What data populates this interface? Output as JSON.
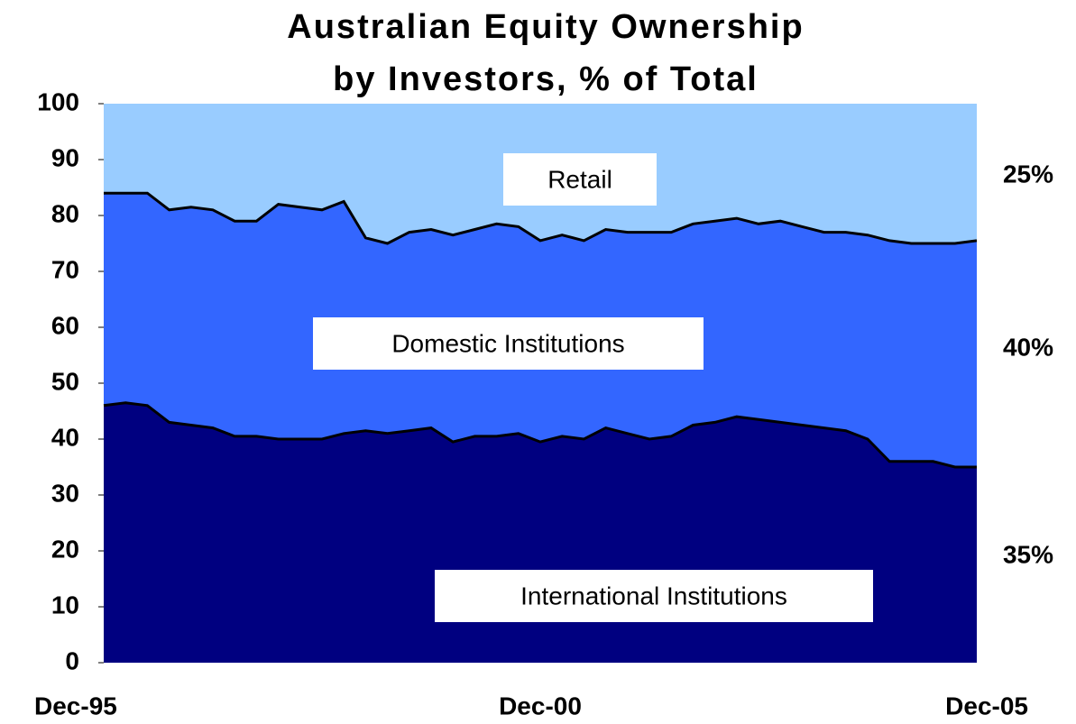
{
  "chart_data": {
    "type": "stacked_area",
    "title": [
      "Australian Equity Ownership",
      "by Investors, % of Total"
    ],
    "categories": [
      "Dec-95",
      null,
      null,
      null,
      null,
      null,
      null,
      null,
      null,
      null,
      null,
      null,
      null,
      null,
      null,
      null,
      null,
      null,
      null,
      null,
      "Dec-00",
      null,
      null,
      null,
      null,
      null,
      null,
      null,
      null,
      null,
      null,
      null,
      null,
      null,
      null,
      null,
      null,
      null,
      null,
      null,
      "Dec-05"
    ],
    "series": [
      {
        "name": "International Institutions",
        "color": "#000080",
        "values": [
          46,
          46.5,
          46,
          43,
          42.5,
          42,
          40.5,
          40.5,
          40,
          40,
          40,
          41,
          41.5,
          41,
          41.5,
          42,
          39.5,
          40.5,
          40.5,
          41,
          39.5,
          40.5,
          40,
          42,
          41,
          40,
          40.5,
          42.5,
          43,
          44,
          43.5,
          43,
          42.5,
          42,
          41.5,
          40,
          36,
          36,
          36,
          35,
          35
        ]
      },
      {
        "name": "Domestic Institutions",
        "color": "#3366ff",
        "values": [
          38,
          37.5,
          38,
          38,
          39,
          39,
          38.5,
          38.5,
          42,
          41.5,
          41,
          41.5,
          34.5,
          34,
          35.5,
          35.5,
          37,
          37,
          38,
          37,
          36,
          36,
          35.5,
          35.5,
          36,
          37,
          36.5,
          36,
          36,
          35.5,
          35,
          36,
          35.5,
          35,
          35.5,
          36.5,
          39.5,
          39,
          39,
          40,
          40.5
        ]
      },
      {
        "name": "Retail",
        "color": "#99ccff",
        "values": [
          16,
          16,
          16,
          19,
          18.5,
          19,
          21,
          21,
          18,
          18.5,
          19,
          17.5,
          24,
          25,
          23,
          22.5,
          23.5,
          22.5,
          21.5,
          22,
          24.5,
          23.5,
          24.5,
          22.5,
          23,
          23,
          23,
          21.5,
          21,
          20.5,
          21.5,
          21,
          22,
          23,
          23,
          23.5,
          24.5,
          25,
          25,
          25,
          24.5
        ]
      }
    ],
    "annotations": [
      "25%",
      "40%",
      "35%"
    ],
    "ylim": [
      0,
      100
    ],
    "yticks": [
      0,
      10,
      20,
      30,
      40,
      50,
      60,
      70,
      80,
      90,
      100
    ]
  }
}
